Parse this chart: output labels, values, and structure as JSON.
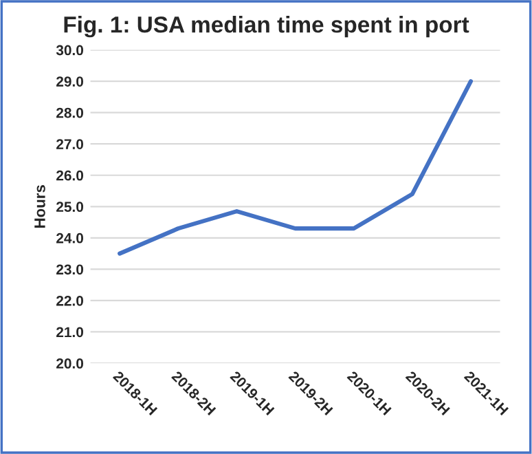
{
  "chart_data": {
    "type": "line",
    "title": "Fig. 1: USA median time spent in port",
    "ylabel": "Hours",
    "categories": [
      "2018-1H",
      "2018-2H",
      "2019-1H",
      "2019-2H",
      "2020-1H",
      "2020-2H",
      "2021-1H"
    ],
    "series": [
      {
        "color": "#4472c4",
        "values": [
          23.5,
          24.3,
          24.85,
          24.3,
          24.3,
          25.4,
          29.0
        ]
      }
    ],
    "ylim": [
      20,
      30
    ],
    "yticks": [
      {
        "value": 20,
        "label": "20.0"
      },
      {
        "value": 21,
        "label": "21.0"
      },
      {
        "value": 22,
        "label": "22.0"
      },
      {
        "value": 23,
        "label": "23.0"
      },
      {
        "value": 24,
        "label": "24.0"
      },
      {
        "value": 25,
        "label": "25.0"
      },
      {
        "value": 26,
        "label": "26.0"
      },
      {
        "value": 27,
        "label": "27.0"
      },
      {
        "value": 28,
        "label": "28.0"
      },
      {
        "value": 29,
        "label": "29.0"
      },
      {
        "value": 30,
        "label": "30.0"
      }
    ],
    "grid": "y",
    "marker": "none",
    "line_style": "solid"
  }
}
